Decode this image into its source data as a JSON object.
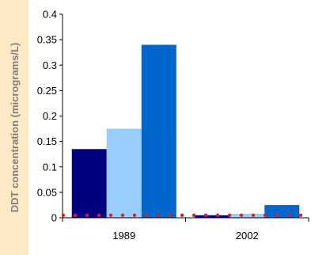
{
  "chart_data": {
    "type": "bar",
    "categories": [
      "1989",
      "2002"
    ],
    "series": [
      {
        "values": [
          0.135,
          0.005
        ],
        "color": "#000080"
      },
      {
        "values": [
          0.175,
          0.008
        ],
        "color": "#99ccff"
      },
      {
        "values": [
          0.34,
          0.025
        ],
        "color": "#0066cc"
      }
    ],
    "ylabel": "DDT concentration (micrograms/L)",
    "ylim": [
      0,
      0.4
    ],
    "yticks": [
      "0",
      "0.05",
      "0.1",
      "0.15",
      "0.2",
      "0.25",
      "0.3",
      "0.35",
      "0.4"
    ],
    "ytick_values": [
      0,
      0.05,
      0.1,
      0.15,
      0.2,
      0.25,
      0.3,
      0.35,
      0.4
    ],
    "threshold_line": {
      "value": 0.005,
      "color": "#e02020",
      "style": "dotted"
    },
    "grid": false,
    "background": "#fde9c4",
    "axis_label_color": "#808080"
  }
}
